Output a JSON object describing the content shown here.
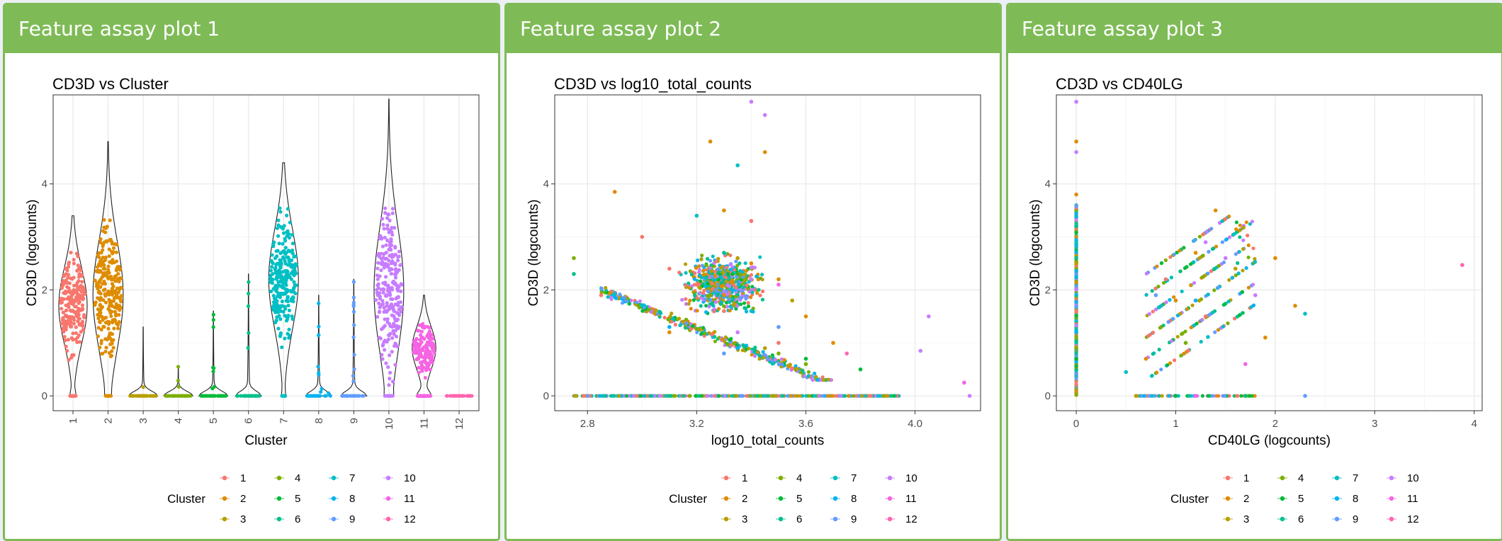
{
  "panels": [
    {
      "title": "Feature assay plot 1"
    },
    {
      "title": "Feature assay plot 2"
    },
    {
      "title": "Feature assay plot 3"
    }
  ],
  "cluster_colors": {
    "1": "#F8766D",
    "2": "#DE8C00",
    "3": "#B79F00",
    "4": "#7CAE00",
    "5": "#00BA38",
    "6": "#00C08B",
    "7": "#00BFC4",
    "8": "#00B4F0",
    "9": "#619CFF",
    "10": "#C77CFF",
    "11": "#F564E3",
    "12": "#FF64B0"
  },
  "legend": {
    "title": "Cluster",
    "entries": [
      "1",
      "2",
      "3",
      "4",
      "5",
      "6",
      "7",
      "8",
      "9",
      "10",
      "11",
      "12"
    ]
  },
  "chart_data": [
    {
      "type": "scatter",
      "subtype": "violin",
      "title": "CD3D vs Cluster",
      "xlabel": "Cluster",
      "ylabel": "CD3D (logcounts)",
      "categories": [
        "1",
        "2",
        "3",
        "4",
        "5",
        "6",
        "7",
        "8",
        "9",
        "10",
        "11",
        "12"
      ],
      "x_tick_labels": [
        "1",
        "2",
        "3",
        "4",
        "5",
        "6",
        "7",
        "8",
        "9",
        "10",
        "11",
        "12"
      ],
      "ylim": [
        -0.28,
        5.68
      ],
      "y_ticks": [
        0,
        2,
        4
      ],
      "grid": true,
      "legend_position": "bottom",
      "series": [
        {
          "cluster": "1",
          "min": 0,
          "q_center": 1.7,
          "max": 3.4,
          "zero_fraction": 0.15
        },
        {
          "cluster": "2",
          "min": 0,
          "q_center": 1.9,
          "max": 4.8,
          "zero_fraction": 0.05
        },
        {
          "cluster": "3",
          "min": 0,
          "q_center": 0.0,
          "max": 1.3,
          "zero_fraction": 0.85
        },
        {
          "cluster": "4",
          "min": 0,
          "q_center": 0.0,
          "max": 0.55,
          "zero_fraction": 0.85
        },
        {
          "cluster": "5",
          "min": 0,
          "q_center": 0.0,
          "max": 1.6,
          "zero_fraction": 0.85
        },
        {
          "cluster": "6",
          "min": 0,
          "q_center": 0.0,
          "max": 2.3,
          "zero_fraction": 0.75
        },
        {
          "cluster": "7",
          "min": 0,
          "q_center": 2.2,
          "max": 4.4,
          "zero_fraction": 0.08
        },
        {
          "cluster": "8",
          "min": 0,
          "q_center": 0.0,
          "max": 1.9,
          "zero_fraction": 0.75
        },
        {
          "cluster": "9",
          "min": 0,
          "q_center": 0.0,
          "max": 2.2,
          "zero_fraction": 0.75
        },
        {
          "cluster": "10",
          "min": 0,
          "q_center": 2.0,
          "max": 5.6,
          "zero_fraction": 0.08
        },
        {
          "cluster": "11",
          "min": 0,
          "q_center": 0.9,
          "max": 1.9,
          "zero_fraction": 0.4
        },
        {
          "cluster": "12",
          "min": 0,
          "q_center": 0.0,
          "max": 0.0,
          "zero_fraction": 1.0
        }
      ]
    },
    {
      "type": "scatter",
      "title": "CD3D vs log10_total_counts",
      "xlabel": "log10_total_counts",
      "ylabel": "CD3D (logcounts)",
      "xlim": [
        2.68,
        4.24
      ],
      "ylim": [
        -0.28,
        5.68
      ],
      "x_ticks": [
        2.8,
        3.2,
        3.6,
        4.0
      ],
      "x_tick_labels": [
        "2.8",
        "3.2",
        "3.6",
        "4.0"
      ],
      "y_ticks": [
        0,
        2,
        4
      ],
      "grid": true,
      "legend_position": "bottom",
      "series": [
        {
          "cluster": "1",
          "points": [
            [
              3.0,
              3.0
            ],
            [
              3.1,
              2.4
            ],
            [
              3.3,
              1.6
            ],
            [
              3.4,
              3.3
            ],
            [
              2.85,
              1.9
            ],
            [
              3.5,
              1.0
            ],
            [
              3.2,
              2.1
            ]
          ]
        },
        {
          "cluster": "2",
          "points": [
            [
              2.9,
              3.85
            ],
            [
              3.25,
              4.8
            ],
            [
              3.45,
              4.6
            ],
            [
              3.3,
              3.5
            ],
            [
              3.4,
              2.5
            ],
            [
              3.6,
              1.5
            ],
            [
              3.7,
              1.0
            ],
            [
              3.1,
              1.2
            ],
            [
              3.5,
              2.2
            ],
            [
              3.3,
              1.9
            ]
          ]
        },
        {
          "cluster": "3",
          "points": [
            [
              3.35,
              2.6
            ],
            [
              3.55,
              1.8
            ],
            [
              3.15,
              1.4
            ],
            [
              3.45,
              0.9
            ]
          ]
        },
        {
          "cluster": "4",
          "points": [
            [
              2.75,
              2.6
            ],
            [
              3.5,
              0.8
            ],
            [
              3.6,
              0.6
            ]
          ]
        },
        {
          "cluster": "5",
          "points": [
            [
              3.6,
              0.7
            ],
            [
              3.8,
              0.5
            ]
          ]
        },
        {
          "cluster": "6",
          "points": [
            [
              2.75,
              2.3
            ],
            [
              3.3,
              2.7
            ]
          ]
        },
        {
          "cluster": "7",
          "points": [
            [
              3.35,
              4.35
            ],
            [
              3.2,
              3.4
            ],
            [
              3.4,
              1.6
            ],
            [
              3.0,
              1.7
            ]
          ]
        },
        {
          "cluster": "8",
          "points": [
            [
              3.35,
              0.9
            ],
            [
              3.1,
              1.3
            ]
          ]
        },
        {
          "cluster": "9",
          "points": [
            [
              3.3,
              0.8
            ],
            [
              3.5,
              1.3
            ]
          ]
        },
        {
          "cluster": "10",
          "points": [
            [
              3.4,
              5.55
            ],
            [
              3.45,
              5.3
            ],
            [
              3.4,
              2.2
            ],
            [
              3.35,
              1.2
            ],
            [
              4.05,
              1.5
            ],
            [
              4.02,
              0.85
            ],
            [
              4.2,
              0.0
            ]
          ]
        },
        {
          "cluster": "11",
          "points": [
            [
              3.5,
              2.1
            ],
            [
              4.18,
              0.25
            ]
          ]
        },
        {
          "cluster": "12",
          "points": [
            [
              3.75,
              0.8
            ]
          ]
        }
      ]
    },
    {
      "type": "scatter",
      "title": "CD3D vs CD40LG",
      "xlabel": "CD40LG (logcounts)",
      "ylabel": "CD3D (logcounts)",
      "xlim": [
        -0.2,
        4.08
      ],
      "ylim": [
        -0.28,
        5.68
      ],
      "x_ticks": [
        0,
        1,
        2,
        3,
        4
      ],
      "x_tick_labels": [
        "0",
        "1",
        "2",
        "3",
        "4"
      ],
      "y_ticks": [
        0,
        2,
        4
      ],
      "grid": true,
      "legend_position": "bottom",
      "series": [
        {
          "cluster": "1",
          "points": [
            [
              0,
              1.6
            ],
            [
              0.9,
              2.2
            ],
            [
              1.3,
              1.5
            ]
          ]
        },
        {
          "cluster": "2",
          "points": [
            [
              0,
              4.8
            ],
            [
              0,
              3.8
            ],
            [
              1.4,
              3.5
            ],
            [
              1.2,
              2.7
            ],
            [
              1.0,
              1.8
            ],
            [
              0.7,
              0.7
            ],
            [
              2.0,
              2.6
            ],
            [
              1.9,
              1.1
            ],
            [
              2.2,
              1.7
            ]
          ]
        },
        {
          "cluster": "3",
          "points": [
            [
              0,
              2.5
            ],
            [
              1.6,
              2.4
            ],
            [
              0.6,
              0.0
            ]
          ]
        },
        {
          "cluster": "4",
          "points": [
            [
              0,
              0.9
            ],
            [
              1.1,
              1.0
            ]
          ]
        },
        {
          "cluster": "5",
          "points": [
            [
              0,
              0.7
            ],
            [
              1.0,
              0.0
            ]
          ]
        },
        {
          "cluster": "6",
          "points": [
            [
              0,
              3.2
            ],
            [
              1.7,
              0.0
            ]
          ]
        },
        {
          "cluster": "7",
          "points": [
            [
              0,
              1.9
            ],
            [
              2.3,
              1.55
            ],
            [
              0.5,
              0.45
            ]
          ]
        },
        {
          "cluster": "8",
          "points": [
            [
              0,
              1.2
            ],
            [
              1.2,
              1.8
            ]
          ]
        },
        {
          "cluster": "9",
          "points": [
            [
              2.3,
              0.0
            ],
            [
              0.8,
              1.9
            ]
          ]
        },
        {
          "cluster": "10",
          "points": [
            [
              0,
              5.55
            ],
            [
              0,
              4.6
            ],
            [
              1.5,
              2.6
            ],
            [
              1.3,
              2.9
            ],
            [
              1.8,
              1.9
            ]
          ]
        },
        {
          "cluster": "11",
          "points": [
            [
              1.7,
              0.6
            ],
            [
              1.2,
              0.0
            ]
          ]
        },
        {
          "cluster": "12",
          "points": [
            [
              3.88,
              2.47
            ]
          ]
        }
      ]
    }
  ]
}
